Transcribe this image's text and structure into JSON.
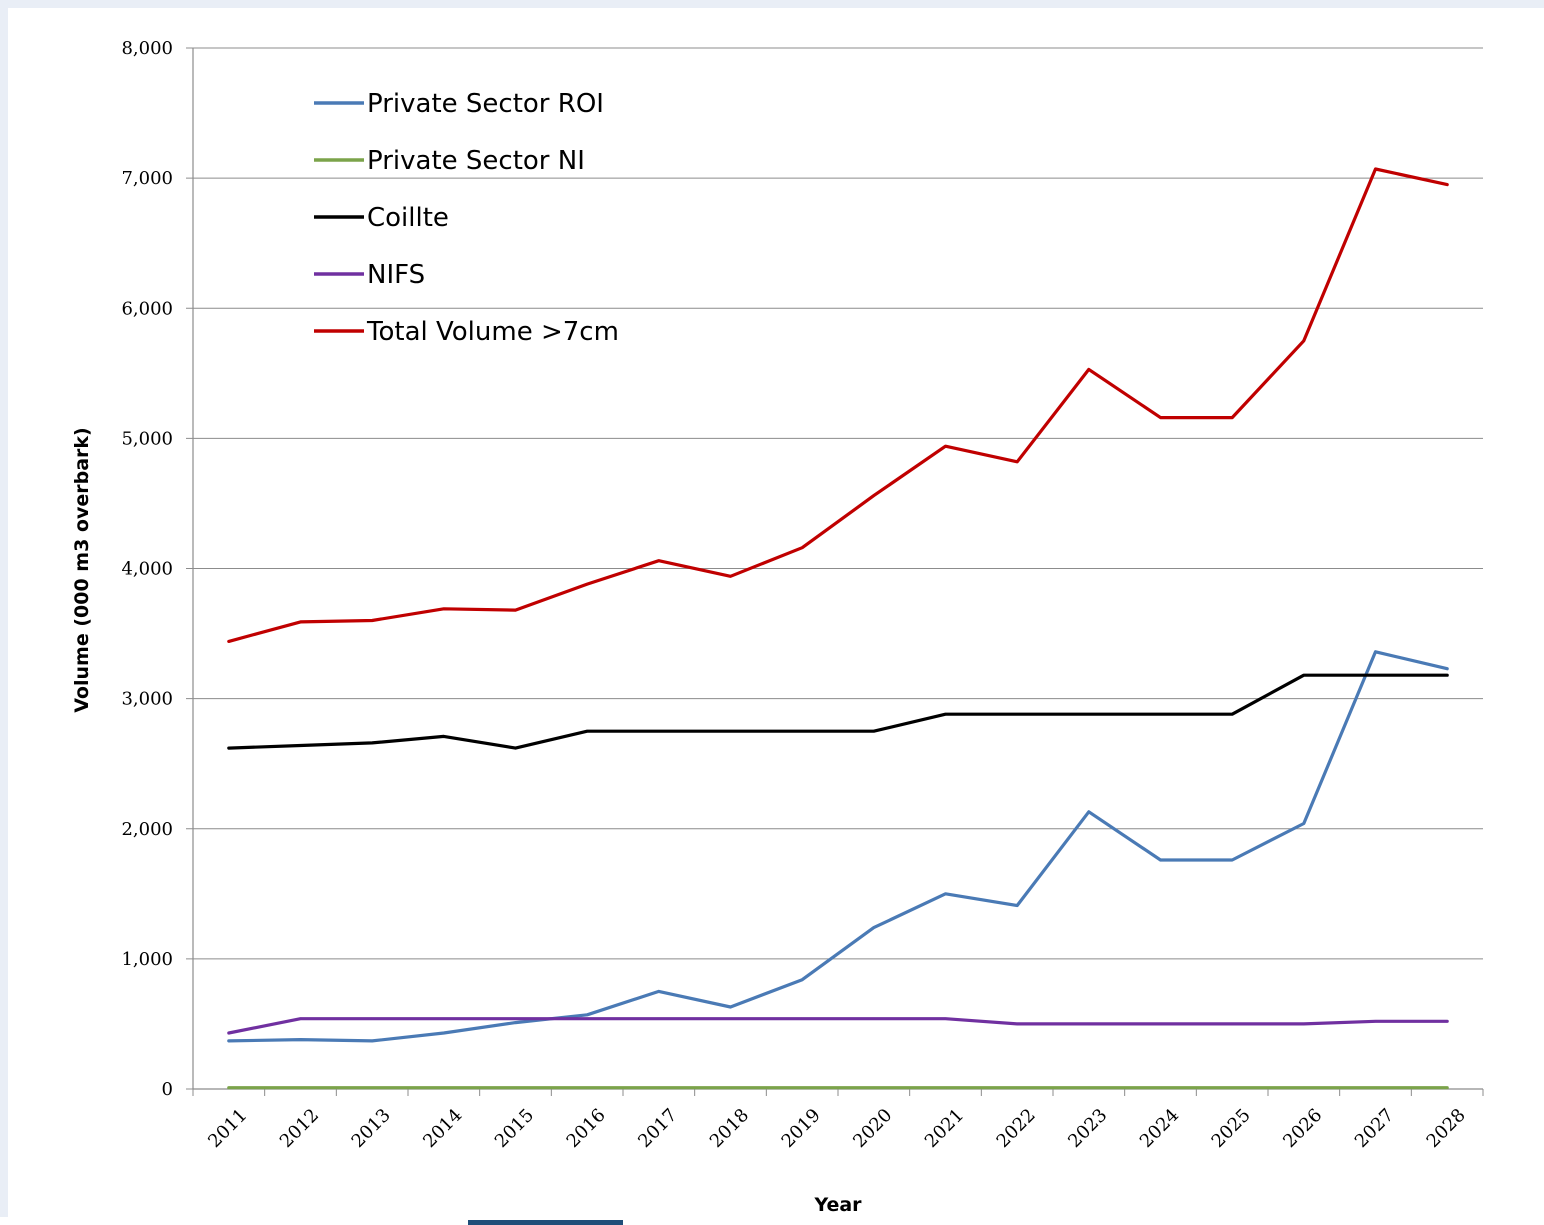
{
  "chart_data": {
    "type": "line",
    "title": "",
    "xlabel": "Year",
    "ylabel": "Volume (000 m3 overbark)",
    "ylim": [
      0,
      8000
    ],
    "yticks": [
      0,
      1000,
      2000,
      3000,
      4000,
      5000,
      6000,
      7000,
      8000
    ],
    "ytick_labels": [
      "0",
      "1,000",
      "2,000",
      "3,000",
      "4,000",
      "5,000",
      "6,000",
      "7,000",
      "8,000"
    ],
    "grid": "horizontal",
    "legend_position": "top-left",
    "categories": [
      "2011",
      "2012",
      "2013",
      "2014",
      "2015",
      "2016",
      "2017",
      "2018",
      "2019",
      "2020",
      "2021",
      "2022",
      "2023",
      "2024",
      "2025",
      "2026",
      "2027",
      "2028"
    ],
    "series": [
      {
        "name": "Private Sector ROI",
        "color": "#4a7ab5",
        "values": [
          370,
          380,
          370,
          430,
          510,
          570,
          750,
          630,
          840,
          1240,
          1500,
          1410,
          2130,
          1760,
          1760,
          2040,
          3360,
          3230
        ]
      },
      {
        "name": "Private Sector NI",
        "color": "#7ba34a",
        "values": [
          10,
          10,
          10,
          10,
          10,
          10,
          10,
          10,
          10,
          10,
          10,
          10,
          10,
          10,
          10,
          10,
          10,
          10
        ]
      },
      {
        "name": "Coillte",
        "color": "#000000",
        "values": [
          2620,
          2640,
          2660,
          2710,
          2620,
          2750,
          2750,
          2750,
          2750,
          2750,
          2880,
          2880,
          2880,
          2880,
          2880,
          3180,
          3180,
          3180
        ]
      },
      {
        "name": "NIFS",
        "color": "#7030a0",
        "values": [
          430,
          540,
          540,
          540,
          540,
          540,
          540,
          540,
          540,
          540,
          540,
          500,
          500,
          500,
          500,
          500,
          520,
          520
        ]
      },
      {
        "name": "Total Volume >7cm",
        "color": "#c00000",
        "values": [
          3440,
          3590,
          3600,
          3690,
          3680,
          3880,
          4060,
          3940,
          4160,
          4560,
          4940,
          4820,
          5530,
          5160,
          5160,
          5750,
          7070,
          6950
        ]
      }
    ]
  }
}
